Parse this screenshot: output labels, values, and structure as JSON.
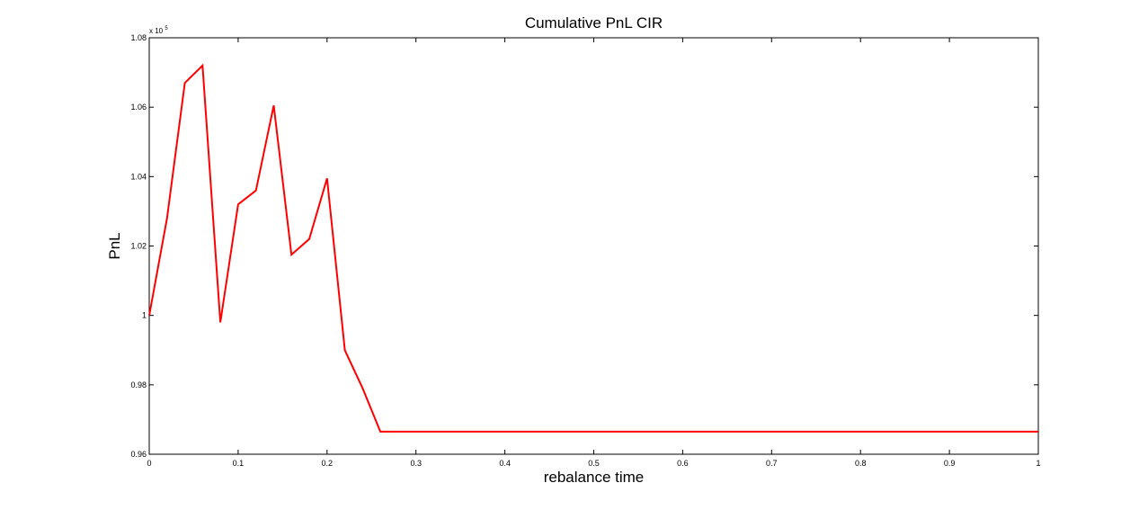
{
  "chart_data": {
    "type": "line",
    "title": "Cumulative PnL CIR",
    "xlabel": "rebalance time",
    "ylabel": "PnL",
    "y_multiplier_label": "x 10",
    "y_multiplier_exponent": "5",
    "xlim": [
      0,
      1
    ],
    "ylim": [
      0.96,
      1.08
    ],
    "x_ticks": [
      0,
      0.1,
      0.2,
      0.3,
      0.4,
      0.5,
      0.6,
      0.7,
      0.8,
      0.9,
      1
    ],
    "x_tick_labels": [
      "0",
      "0.1",
      "0.2",
      "0.3",
      "0.4",
      "0.5",
      "0.6",
      "0.7",
      "0.8",
      "0.9",
      "1"
    ],
    "y_ticks": [
      0.96,
      0.98,
      1.0,
      1.02,
      1.04,
      1.06,
      1.08
    ],
    "y_tick_labels": [
      "0.96",
      "0.98",
      "1",
      "1.02",
      "1.04",
      "1.06",
      "1.08"
    ],
    "grid": false,
    "series": [
      {
        "color": "#ff0000",
        "x": [
          0,
          0.02,
          0.04,
          0.06,
          0.08,
          0.1,
          0.12,
          0.14,
          0.16,
          0.18,
          0.2,
          0.22,
          0.24,
          0.26,
          1.0
        ],
        "y": [
          1.0,
          1.028,
          1.067,
          1.072,
          0.998,
          1.032,
          1.036,
          1.0605,
          1.0175,
          1.022,
          1.0395,
          0.99,
          0.979,
          0.9665,
          0.9665
        ]
      }
    ]
  }
}
